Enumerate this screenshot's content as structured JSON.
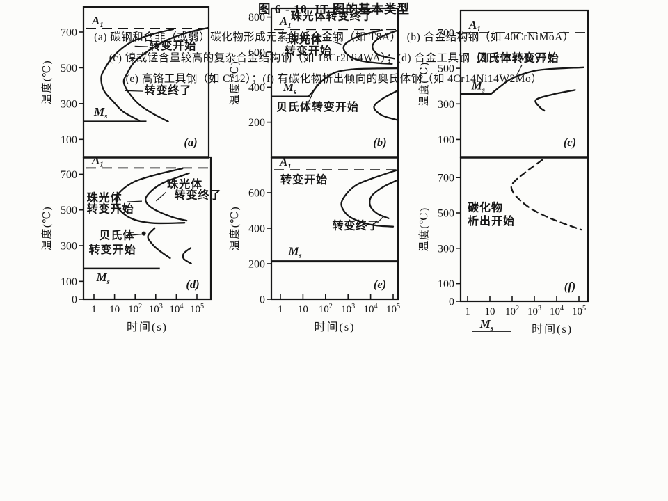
{
  "figure": {
    "title": "图 6 - 10  IT 图的基本类型",
    "caption_lines": [
      "(a) 碳钢和含非（或弱）碳化物形成元素的低合金钢（如 T8A）；(b) 合金结构钢（如 40CrNiMoA）",
      "(c) 镍或锰含量较高的复杂合金结构钢（如 18Cr2Ni4WA）；(d) 合金工具钢（如 Cr12MoV）；",
      "(e) 高铬工具钢（如 Cr12）；(f) 有碳化物析出倾向的奥氏体钢（如 4Cr14Ni14W2Mo）"
    ]
  },
  "chart_data": [
    {
      "id": "a",
      "type": "line",
      "panel": "(a)",
      "ylabel": "温度(℃)",
      "ylim": [
        0,
        840
      ],
      "yticks": [
        100,
        300,
        500,
        700
      ],
      "x_ticks": null,
      "x_label": null,
      "a1": {
        "main": "A",
        "sub": "1",
        "temp": 720
      },
      "ms": {
        "main": "M",
        "sub": "s",
        "temp": 200,
        "from": -0.51,
        "to": 2.55,
        "label_x": 0.0,
        "label_temp": 252
      },
      "curves": [
        {
          "name": "transformation-start",
          "dashed": false,
          "pts": [
            [
              3.85,
              716
            ],
            [
              2.8,
              686
            ],
            [
              1.75,
              640
            ],
            [
              0.95,
              565
            ],
            [
              0.5,
              490
            ],
            [
              0.35,
              440
            ],
            [
              0.5,
              370
            ],
            [
              0.95,
              310
            ],
            [
              1.42,
              255
            ],
            [
              2.2,
              205
            ]
          ]
        },
        {
          "name": "transformation-end",
          "dashed": false,
          "pts": [
            [
              5.57,
              724
            ],
            [
              4.65,
              700
            ],
            [
              3.55,
              655
            ],
            [
              2.65,
              595
            ],
            [
              1.95,
              530
            ],
            [
              1.6,
              466
            ],
            [
              1.45,
              420
            ],
            [
              1.7,
              360
            ],
            [
              2.2,
              295
            ],
            [
              2.85,
              245
            ],
            [
              3.6,
              200
            ]
          ]
        }
      ],
      "notes": [
        {
          "text": "转变开始",
          "x": 2.68,
          "temp": 618
        },
        {
          "text": "转变终了",
          "x": 2.45,
          "temp": 368
        }
      ],
      "leaders": [
        [
          [
            2.62,
            618
          ],
          [
            1.98,
            621
          ]
        ],
        [
          [
            2.4,
            369
          ],
          [
            1.52,
            372
          ]
        ]
      ],
      "dots": []
    },
    {
      "id": "b",
      "type": "line",
      "panel": "(b)",
      "ylabel": "温度(℃)",
      "ylim": [
        0,
        850
      ],
      "yticks": [
        200,
        400,
        600,
        800
      ],
      "x_ticks": null,
      "x_label": null,
      "a1": {
        "main": "A",
        "sub": "1",
        "temp": 730
      },
      "ms": {
        "main": "M",
        "sub": "s",
        "temp": 347,
        "from": -0.4,
        "to": 1.25,
        "label_x": 0.12,
        "label_temp": 398
      },
      "curves": [
        {
          "name": "pearlite-start",
          "dashed": false,
          "pts": [
            [
              4.5,
              726
            ],
            [
              3.5,
              692
            ],
            [
              2.95,
              655
            ],
            [
              2.8,
              622
            ],
            [
              3.0,
              583
            ],
            [
              3.5,
              553
            ],
            [
              4.3,
              538
            ],
            [
              4.95,
              533
            ]
          ]
        },
        {
          "name": "pearlite-end",
          "dashed": false,
          "pts": [
            [
              5.15,
              722
            ],
            [
              4.4,
              682
            ],
            [
              4.08,
              633
            ],
            [
              4.35,
              585
            ],
            [
              5.05,
              563
            ]
          ]
        },
        {
          "name": "bainite-start",
          "dashed": false,
          "pts": [
            [
              1.25,
              347
            ],
            [
              1.5,
              385
            ],
            [
              1.78,
              428
            ],
            [
              2.4,
              482
            ],
            [
              3.2,
              502
            ],
            [
              4.3,
              507
            ],
            [
              5.22,
              508
            ]
          ]
        },
        {
          "name": "lower-c-curve",
          "dashed": false,
          "pts": [
            [
              5.22,
              382
            ],
            [
              4.5,
              332
            ],
            [
              4.15,
              286
            ],
            [
              4.5,
              240
            ],
            [
              5.22,
              212
            ]
          ]
        }
      ],
      "notes": [
        {
          "text": "珠光体转变终了",
          "x": 0.45,
          "temp": 800
        },
        {
          "text": "珠光体",
          "x": 0.3,
          "temp": 665
        },
        {
          "text": "转变开始",
          "x": 0.18,
          "temp": 600
        },
        {
          "text": "贝氏体转变开始",
          "x": -0.19,
          "temp": 280
        }
      ],
      "leaders": [
        [
          [
            2.32,
            660
          ],
          [
            2.7,
            645
          ]
        ],
        [
          [
            1.2,
            303
          ],
          [
            1.63,
            418
          ]
        ]
      ],
      "dots": []
    },
    {
      "id": "c",
      "type": "line",
      "panel": "(c)",
      "ylabel": "温度(℃)",
      "ylim": [
        0,
        825
      ],
      "yticks": [
        100,
        300,
        500,
        700
      ],
      "x_ticks": null,
      "x_label": null,
      "a1": {
        "main": "A",
        "sub": "1",
        "temp": 700
      },
      "ms": {
        "main": "M",
        "sub": "s",
        "temp": 355,
        "from": -0.39,
        "to": 1.05,
        "label_x": 0.12,
        "label_temp": 400
      },
      "curves": [
        {
          "name": "bainite-start",
          "dashed": false,
          "pts": [
            [
              1.05,
              357
            ],
            [
              1.9,
              435
            ],
            [
              2.8,
              477
            ],
            [
              3.7,
              495
            ],
            [
              5.4,
              505
            ]
          ]
        },
        {
          "name": "lower-c-curve",
          "dashed": false,
          "pts": [
            [
              5.0,
              378
            ],
            [
              3.9,
              352
            ],
            [
              3.15,
              322
            ],
            [
              3.35,
              280
            ],
            [
              3.55,
              262
            ]
          ]
        }
      ],
      "notes": [
        {
          "text": "贝氏体转变开始",
          "x": 0.35,
          "temp": 552
        }
      ],
      "leaders": [
        [
          [
            2.5,
            520
          ],
          [
            2.28,
            468
          ]
        ]
      ],
      "dots": []
    },
    {
      "id": "d",
      "type": "line",
      "panel": "(d)",
      "ylabel": "温度(℃)",
      "ylim": [
        0,
        795
      ],
      "yticks": [
        0,
        100,
        300,
        500,
        700
      ],
      "x_ticks": [
        "1",
        "10",
        "10^2",
        "10^3",
        "10^4",
        "10^5"
      ],
      "x_label": "时间(s)",
      "a1": {
        "main": "A",
        "sub": "1",
        "temp": 735
      },
      "ms": {
        "main": "M",
        "sub": "s",
        "temp": 172,
        "from": -0.51,
        "to": 3.2,
        "label_x": 0.12,
        "label_temp": 120
      },
      "curves": [
        {
          "name": "pearlite-start",
          "dashed": false,
          "pts": [
            [
              4.3,
              732
            ],
            [
              3.1,
              700
            ],
            [
              2.0,
              660
            ],
            [
              1.3,
              605
            ],
            [
              1.08,
              555
            ],
            [
              1.25,
              500
            ],
            [
              1.9,
              448
            ],
            [
              2.9,
              426
            ],
            [
              4.4,
              428
            ]
          ]
        },
        {
          "name": "pearlite-end",
          "dashed": false,
          "pts": [
            [
              4.62,
              706
            ],
            [
              3.3,
              648
            ],
            [
              2.65,
              590
            ],
            [
              2.52,
              548
            ],
            [
              2.9,
              505
            ],
            [
              3.8,
              460
            ],
            [
              4.5,
              440
            ]
          ]
        },
        {
          "name": "bainite-start",
          "dashed": false,
          "pts": [
            [
              2.95,
              398
            ],
            [
              2.62,
              352
            ],
            [
              2.85,
              306
            ],
            [
              3.22,
              268
            ],
            [
              3.7,
              230
            ]
          ]
        },
        {
          "name": "lower-hook",
          "dashed": false,
          "pts": [
            [
              4.7,
              287
            ],
            [
              4.36,
              256
            ],
            [
              4.36,
              226
            ],
            [
              4.72,
              200
            ]
          ]
        }
      ],
      "notes": [
        {
          "text": "珠光体",
          "x": -0.35,
          "temp": 562
        },
        {
          "text": "转变开始",
          "x": -0.35,
          "temp": 500
        },
        {
          "text": "珠光体",
          "x": 3.55,
          "temp": 638
        },
        {
          "text": "转变终了",
          "x": 3.9,
          "temp": 577
        },
        {
          "text": "贝氏体",
          "x": 0.25,
          "temp": 352
        },
        {
          "text": "转变开始",
          "x": -0.25,
          "temp": 272
        }
      ],
      "leaders": [
        [
          [
            1.6,
            545
          ],
          [
            2.33,
            549
          ]
        ],
        [
          [
            3.5,
            600
          ],
          [
            3.02,
            550
          ]
        ],
        [
          [
            1.55,
            356
          ],
          [
            2.34,
            364
          ]
        ]
      ],
      "dots": [
        [
          2.42,
          368
        ]
      ]
    },
    {
      "id": "e",
      "type": "line",
      "panel": "(e)",
      "ylabel": "温度(℃)",
      "ylim": [
        0,
        800
      ],
      "yticks": [
        0,
        200,
        400,
        600
      ],
      "x_ticks": [
        "1",
        "10",
        "10^2",
        "10^3",
        "10^4",
        "10^5"
      ],
      "x_label": "时间(s)",
      "a1": {
        "main": "A",
        "sub": "1",
        "temp": 729
      },
      "ms": {
        "main": "M",
        "sub": "s",
        "temp": 213,
        "from": -0.4,
        "to": 5.22,
        "label_x": 0.35,
        "label_temp": 268,
        "thick": true
      },
      "curves": [
        {
          "name": "transformation-start",
          "dashed": false,
          "pts": [
            [
              5.2,
              729
            ],
            [
              4.1,
              682
            ],
            [
              3.4,
              646
            ],
            [
              2.95,
              597
            ],
            [
              2.7,
              537
            ],
            [
              2.95,
              477
            ],
            [
              3.5,
              438
            ],
            [
              4.2,
              416
            ],
            [
              5.0,
              409
            ]
          ]
        },
        {
          "name": "transformation-end",
          "dashed": false,
          "pts": [
            [
              5.2,
              672
            ],
            [
              4.55,
              632
            ],
            [
              4.05,
              582
            ],
            [
              3.98,
              527
            ],
            [
              4.3,
              482
            ],
            [
              4.8,
              456
            ]
          ]
        }
      ],
      "notes": [
        {
          "text": "转变开始",
          "x": 0.0,
          "temp": 667
        },
        {
          "text": "转变终了",
          "x": 2.3,
          "temp": 408
        }
      ],
      "leaders": [
        [
          [
            4.28,
            428
          ],
          [
            4.6,
            470
          ]
        ]
      ],
      "dots": []
    },
    {
      "id": "f",
      "type": "line",
      "panel": "(f)",
      "ylabel": "温度(℃)",
      "ylim": [
        0,
        815
      ],
      "yticks": [
        0,
        100,
        300,
        500,
        700
      ],
      "x_ticks": [
        "1",
        "10",
        "10^2",
        "10^3",
        "10^4",
        "10^5"
      ],
      "x_label": "时间(s)",
      "a1": null,
      "ms": null,
      "below_axis_ms": {
        "main": "M",
        "sub": "s"
      },
      "curves": [
        {
          "name": "carbide-precipitation-start",
          "dashed": true,
          "pts": [
            [
              3.35,
              800
            ],
            [
              2.6,
              730
            ],
            [
              2.1,
              678
            ],
            [
              1.97,
              640
            ],
            [
              2.25,
              585
            ],
            [
              2.9,
              520
            ],
            [
              3.9,
              460
            ],
            [
              5.1,
              405
            ]
          ]
        }
      ],
      "notes": [
        {
          "text": "碳化物",
          "x": 0.0,
          "temp": 525
        },
        {
          "text": "析出开始",
          "x": 0.0,
          "temp": 448
        }
      ],
      "leaders": [],
      "dots": []
    }
  ]
}
